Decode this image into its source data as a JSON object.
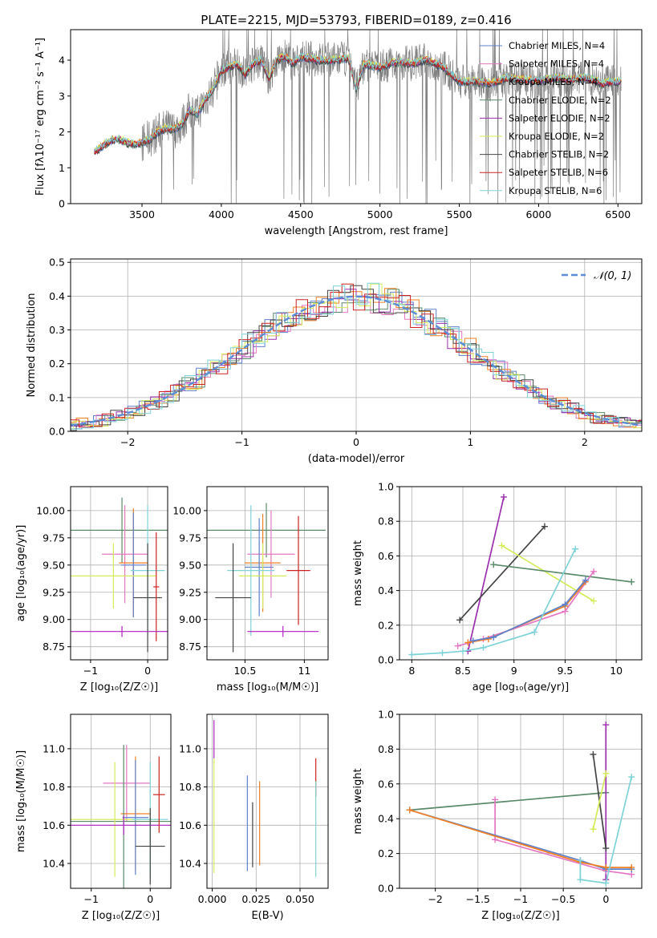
{
  "chart_data": [
    {
      "type": "line",
      "title": "PLATE=2215, MJD=53793, FIBERID=0189, z=0.416",
      "xlabel": "wavelength [Angstrom, rest frame]",
      "ylabel": "Flux [fλ10⁻¹⁷ erg cm⁻² s⁻¹ A⁻¹]",
      "xlim": [
        3050,
        6650
      ],
      "ylim": [
        0,
        4.85
      ],
      "xticks": [
        3500,
        4000,
        4500,
        5000,
        5500,
        6000,
        6500
      ],
      "yticks": [
        0,
        1,
        2,
        3,
        4
      ],
      "grid": false,
      "legend": "top-right",
      "series": [
        {
          "name": "Chabrier MILES, N_SSP=4",
          "color": "#5e81cc"
        },
        {
          "name": "Salpeter MILES, N_SSP=4",
          "color": "#e377c2"
        },
        {
          "name": "Kroupa MILES, N_SSP=4",
          "color": "#f07f24"
        },
        {
          "name": "Chabrier ELODIE, N_SSP=2",
          "color": "#5a8a6a"
        },
        {
          "name": "Salpeter ELODIE, N_SSP=2",
          "color": "#9b2fae"
        },
        {
          "name": "Kroupa ELODIE, N_SSP=2",
          "color": "#d4ec5a"
        },
        {
          "name": "Chabrier STELIB, N_SSP=2",
          "color": "#444444"
        },
        {
          "name": "Salpeter STELIB, N_SSP=6",
          "color": "#cc2222"
        },
        {
          "name": "Kroupa STELIB, N_SSP=6",
          "color": "#7fd3d8"
        }
      ],
      "model_curve": {
        "x": [
          3200,
          3250,
          3300,
          3350,
          3400,
          3450,
          3500,
          3550,
          3600,
          3650,
          3700,
          3750,
          3800,
          3850,
          3900,
          3950,
          4000,
          4050,
          4100,
          4150,
          4200,
          4250,
          4300,
          4350,
          4400,
          4450,
          4500,
          4600,
          4700,
          4800,
          4850,
          4900,
          5000,
          5100,
          5200,
          5300,
          5400,
          5500,
          5600,
          5700,
          5800,
          5900,
          6000,
          6100,
          6200,
          6300,
          6400,
          6500
        ],
        "y": [
          1.45,
          1.6,
          1.75,
          1.8,
          1.7,
          1.65,
          1.7,
          1.8,
          2.0,
          2.1,
          2.05,
          2.2,
          2.6,
          2.5,
          2.9,
          3.2,
          3.7,
          3.8,
          3.9,
          3.6,
          3.9,
          4.0,
          3.5,
          4.0,
          4.1,
          3.9,
          4.1,
          4.0,
          4.0,
          4.05,
          3.2,
          3.9,
          3.8,
          3.95,
          3.9,
          4.0,
          3.8,
          3.4,
          3.4,
          3.35,
          3.5,
          3.45,
          3.4,
          3.5,
          3.45,
          3.5,
          3.35,
          3.4
        ]
      }
    },
    {
      "type": "line",
      "title": "",
      "xlabel": "(data-model)/error",
      "ylabel": "Normed distribution",
      "xlim": [
        -2.5,
        2.5
      ],
      "ylim": [
        0,
        0.51
      ],
      "xticks": [
        -2,
        -1,
        0,
        1,
        2
      ],
      "yticks": [
        0.0,
        0.1,
        0.2,
        0.3,
        0.4,
        0.5
      ],
      "grid": true,
      "legend": "top-right",
      "gaussian_label": "𝒩(0, 1)",
      "gaussian_color": "#5b8dd6"
    },
    {
      "type": "scatter",
      "xlabel": "Z [log₁₀(Z/Z☉)]",
      "ylabel": "age  [log₁₀(age/yr)]",
      "xlim": [
        -1.35,
        0.35
      ],
      "ylim": [
        8.63,
        10.22
      ],
      "xticks": [
        -1,
        0
      ],
      "yticks": [
        8.75,
        9.0,
        9.25,
        9.5,
        9.75,
        10.0
      ],
      "points": [
        {
          "x": -0.45,
          "y": 9.82,
          "xerr": 1.2,
          "yerr": 0.3,
          "color": "#5a8a6a"
        },
        {
          "x": -0.4,
          "y": 9.6,
          "xerr": 0.4,
          "yerr": 0.45,
          "color": "#e377c2"
        },
        {
          "x": -0.25,
          "y": 9.52,
          "xerr": 0.25,
          "yerr": 0.5,
          "color": "#f07f24"
        },
        {
          "x": -0.25,
          "y": 9.5,
          "xerr": 0.22,
          "yerr": 0.48,
          "color": "#5e81cc"
        },
        {
          "x": -0.6,
          "y": 9.4,
          "xerr": 0.75,
          "yerr": 0.3,
          "color": "#d4ec5a"
        },
        {
          "x": 0.0,
          "y": 9.45,
          "xerr": 0.3,
          "yerr": 0.6,
          "color": "#7fd3d8"
        },
        {
          "x": 0.0,
          "y": 9.2,
          "xerr": 0.25,
          "yerr": 0.5,
          "color": "#444444"
        },
        {
          "x": 0.15,
          "y": 9.3,
          "xerr": 0.05,
          "yerr": 0.5,
          "color": "#cc2222"
        },
        {
          "x": -0.45,
          "y": 8.89,
          "xerr": 0.9,
          "yerr": 0.05,
          "color": "#b020c0"
        }
      ]
    },
    {
      "type": "scatter",
      "xlabel": "mass [log₁₀(M/M☉)]",
      "ylabel": "",
      "xlim": [
        10.18,
        11.2
      ],
      "ylim": [
        8.63,
        10.22
      ],
      "xticks": [
        10.5,
        11.0
      ],
      "yticks": [
        8.75,
        9.0,
        9.25,
        9.5,
        9.75,
        10.0
      ],
      "points": [
        {
          "x": 10.68,
          "y": 9.82,
          "xerr": 0.5,
          "yerr": 0.25,
          "color": "#5a8a6a"
        },
        {
          "x": 10.72,
          "y": 9.6,
          "xerr": 0.2,
          "yerr": 0.4,
          "color": "#e377c2"
        },
        {
          "x": 10.65,
          "y": 9.52,
          "xerr": 0.15,
          "yerr": 0.45,
          "color": "#f07f24"
        },
        {
          "x": 10.62,
          "y": 9.48,
          "xerr": 0.12,
          "yerr": 0.45,
          "color": "#5e81cc"
        },
        {
          "x": 10.65,
          "y": 9.4,
          "xerr": 0.2,
          "yerr": 0.3,
          "color": "#d4ec5a"
        },
        {
          "x": 10.55,
          "y": 9.45,
          "xerr": 0.2,
          "yerr": 0.6,
          "color": "#7fd3d8"
        },
        {
          "x": 10.4,
          "y": 9.2,
          "xerr": 0.15,
          "yerr": 0.5,
          "color": "#444444"
        },
        {
          "x": 10.95,
          "y": 9.45,
          "xerr": 0.1,
          "yerr": 0.5,
          "color": "#cc2222"
        },
        {
          "x": 10.82,
          "y": 8.89,
          "xerr": 0.3,
          "yerr": 0.05,
          "color": "#b020c0"
        }
      ]
    },
    {
      "type": "line",
      "xlabel": "age  [log₁₀(age/yr)]",
      "ylabel": "mass weight",
      "xlim": [
        7.88,
        10.25
      ],
      "ylim": [
        0,
        1.0
      ],
      "xticks": [
        8.0,
        8.5,
        9.0,
        9.5,
        10.0
      ],
      "yticks": [
        0.0,
        0.2,
        0.4,
        0.6,
        0.8,
        1.0
      ],
      "grid": true,
      "series": [
        {
          "color": "#9b2fae",
          "x": [
            8.55,
            8.9
          ],
          "y": [
            0.05,
            0.94
          ]
        },
        {
          "color": "#444444",
          "x": [
            8.47,
            9.3
          ],
          "y": [
            0.23,
            0.77
          ]
        },
        {
          "color": "#d4ec5a",
          "x": [
            8.88,
            9.78
          ],
          "y": [
            0.66,
            0.34
          ]
        },
        {
          "color": "#5a8a6a",
          "x": [
            8.8,
            10.15
          ],
          "y": [
            0.55,
            0.45
          ]
        },
        {
          "color": "#e377c2",
          "x": [
            8.45,
            8.7,
            9.5,
            9.78
          ],
          "y": [
            0.08,
            0.12,
            0.28,
            0.51
          ]
        },
        {
          "color": "#f07f24",
          "x": [
            8.55,
            8.75,
            9.5,
            9.7
          ],
          "y": [
            0.1,
            0.12,
            0.31,
            0.45
          ]
        },
        {
          "color": "#5e81cc",
          "x": [
            8.6,
            8.8,
            9.5,
            9.7
          ],
          "y": [
            0.11,
            0.13,
            0.32,
            0.46
          ]
        },
        {
          "color": "#7fd3d8",
          "x": [
            8.0,
            8.3,
            8.5,
            8.7,
            9.2,
            9.6
          ],
          "y": [
            0.03,
            0.04,
            0.05,
            0.07,
            0.16,
            0.64
          ]
        }
      ]
    },
    {
      "type": "scatter",
      "xlabel": "Z [log₁₀(Z/Z☉)]",
      "ylabel": "mass [log₁₀(M/M☉)]",
      "xlim": [
        -1.35,
        0.35
      ],
      "ylim": [
        10.27,
        11.18
      ],
      "xticks": [
        -1,
        0
      ],
      "yticks": [
        10.4,
        10.6,
        10.8,
        11.0
      ],
      "points": [
        {
          "x": -0.4,
          "y": 10.82,
          "xerr": 0.4,
          "yerr": 0.2,
          "color": "#e377c2"
        },
        {
          "x": -0.25,
          "y": 10.66,
          "xerr": 0.25,
          "yerr": 0.3,
          "color": "#f07f24"
        },
        {
          "x": -0.25,
          "y": 10.64,
          "xerr": 0.22,
          "yerr": 0.3,
          "color": "#5e81cc"
        },
        {
          "x": -0.45,
          "y": 10.62,
          "xerr": 1.2,
          "yerr": 0.4,
          "color": "#5a8a6a"
        },
        {
          "x": -0.6,
          "y": 10.63,
          "xerr": 0.75,
          "yerr": 0.3,
          "color": "#d4ec5a"
        },
        {
          "x": -0.45,
          "y": 10.6,
          "xerr": 0.9,
          "yerr": 0.05,
          "color": "#b020c0"
        },
        {
          "x": 0.0,
          "y": 10.63,
          "xerr": 0.3,
          "yerr": 0.3,
          "color": "#7fd3d8"
        },
        {
          "x": 0.15,
          "y": 10.76,
          "xerr": 0.1,
          "yerr": 0.2,
          "color": "#cc2222"
        },
        {
          "x": 0.0,
          "y": 10.49,
          "xerr": 0.25,
          "yerr": 0.2,
          "color": "#444444"
        }
      ]
    },
    {
      "type": "scatter",
      "xlabel": "E(B-V)",
      "ylabel": "",
      "xlim": [
        -0.003,
        0.066
      ],
      "ylim": [
        10.27,
        11.18
      ],
      "xticks": [
        0.0,
        0.025,
        0.05
      ],
      "yticks": [
        10.4,
        10.6,
        10.8,
        11.0
      ],
      "tick_text": [
        "0.000",
        "0.025",
        "0.050"
      ],
      "points": [
        {
          "x": 0.001,
          "y": 11.05,
          "yerr": 0.1,
          "color": "#b020c0"
        },
        {
          "x": 0.001,
          "y": 10.65,
          "yerr": 0.3,
          "color": "#d4ec5a"
        },
        {
          "x": 0.02,
          "y": 10.61,
          "yerr": 0.25,
          "color": "#5e81cc"
        },
        {
          "x": 0.023,
          "y": 10.55,
          "yerr": 0.17,
          "color": "#444444"
        },
        {
          "x": 0.027,
          "y": 10.61,
          "yerr": 0.22,
          "color": "#f07f24"
        },
        {
          "x": 0.059,
          "y": 10.85,
          "yerr": 0.1,
          "color": "#cc2222"
        },
        {
          "x": 0.059,
          "y": 10.58,
          "yerr": 0.25,
          "color": "#7fd3d8"
        }
      ]
    },
    {
      "type": "line",
      "xlabel": "Z [log₁₀(Z/Z☉)]",
      "ylabel": "mass weight",
      "xlim": [
        -2.42,
        0.42
      ],
      "ylim": [
        0,
        1.0
      ],
      "xticks": [
        -2.0,
        -1.5,
        -1.0,
        -0.5,
        0.0
      ],
      "yticks": [
        0.0,
        0.2,
        0.4,
        0.6,
        0.8,
        1.0
      ],
      "grid": true,
      "series": [
        {
          "color": "#5a8a6a",
          "x": [
            -2.3,
            0.0
          ],
          "y": [
            0.45,
            0.55
          ]
        },
        {
          "color": "#9b2fae",
          "x": [
            0.0,
            0.0
          ],
          "y": [
            0.05,
            0.94
          ]
        },
        {
          "color": "#444444",
          "x": [
            -0.15,
            0.0
          ],
          "y": [
            0.77,
            0.23
          ]
        },
        {
          "color": "#d4ec5a",
          "x": [
            -0.15,
            0.0
          ],
          "y": [
            0.34,
            0.66
          ]
        },
        {
          "color": "#e377c2",
          "x": [
            -1.3,
            -1.3,
            0.0,
            0.3
          ],
          "y": [
            0.51,
            0.28,
            0.1,
            0.08
          ]
        },
        {
          "color": "#5e81cc",
          "x": [
            -2.3,
            -0.3,
            0.0,
            0.3
          ],
          "y": [
            0.45,
            0.16,
            0.11,
            0.11
          ]
        },
        {
          "color": "#f07f24",
          "x": [
            -2.3,
            -0.3,
            0.0,
            0.3
          ],
          "y": [
            0.45,
            0.15,
            0.12,
            0.12
          ]
        },
        {
          "color": "#7fd3d8",
          "x": [
            -0.3,
            -0.3,
            0.0,
            0.3
          ],
          "y": [
            0.16,
            0.05,
            0.03,
            0.64
          ]
        }
      ]
    }
  ]
}
